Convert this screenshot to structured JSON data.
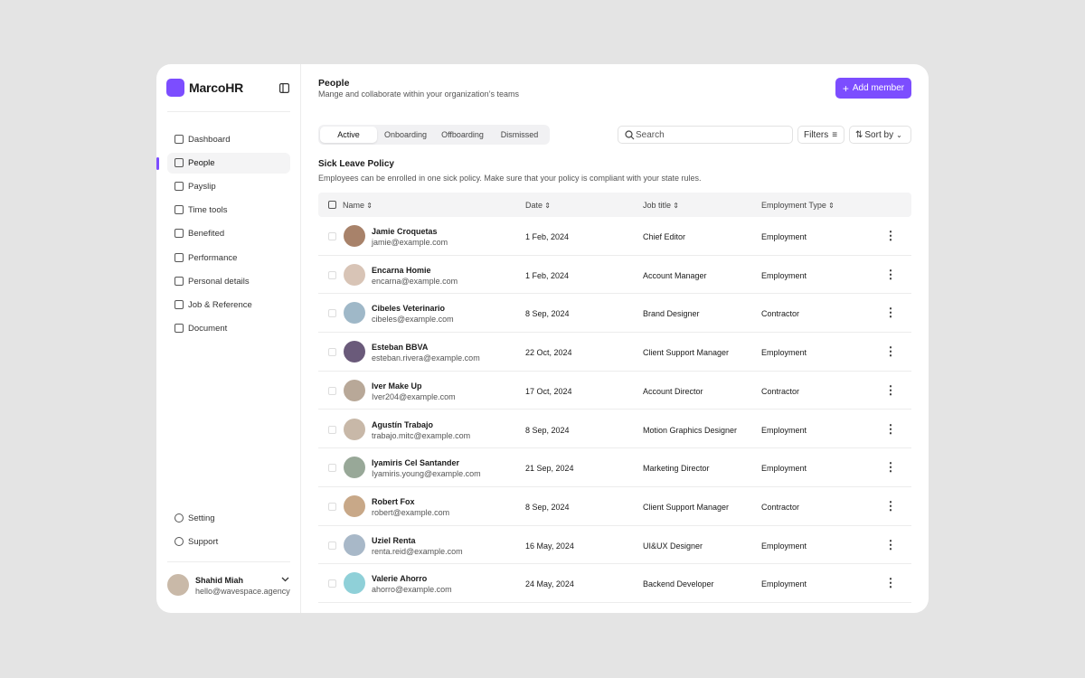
{
  "sidebar": {
    "brand": "MarcoHR",
    "nav": [
      "Dashboard",
      "People",
      "Payslip",
      "Time tools",
      "Benefited",
      "Performance",
      "Personal details",
      "Job & Reference",
      "Document"
    ],
    "footer_nav": [
      "Setting",
      "Support"
    ],
    "user": {
      "name": "Shahid Miah",
      "email": "hello@wavespace.agency"
    }
  },
  "header": {
    "title": "People",
    "subtitle": "Mange and collaborate within your organization’s teams",
    "button": "Add member"
  },
  "tabs": [
    "Active",
    "Onboarding",
    "Offboarding",
    "Dismissed"
  ],
  "search": "Search",
  "filters": "Filters",
  "sort": "Sort by",
  "section": {
    "title": "Sick Leave Policy",
    "description": "Employees can be enrolled in one sick policy. Make sure that your policy is compliant with your state rules."
  },
  "table": {
    "columns": [
      "Name",
      "Date",
      "Job title",
      "Employment Type"
    ],
    "rows": [
      [
        "Jamie Croquetas",
        "jamie@example.com",
        "1 Feb, 2024",
        "Chief Editor",
        "Employment"
      ],
      [
        "Encarna Homie",
        "encarna@example.com",
        "1 Feb, 2024",
        "Account Manager",
        "Employment"
      ],
      [
        "Cibeles Veterinario",
        "cibeles@example.com",
        "8 Sep, 2024",
        "Brand Designer",
        "Contractor"
      ],
      [
        "Esteban BBVA",
        "esteban.rivera@example.com",
        "22 Oct, 2024",
        "Client Support Manager",
        "Employment"
      ],
      [
        "Iver Make Up",
        "Iver204@example.com",
        "17 Oct, 2024",
        "Account Director",
        "Contractor"
      ],
      [
        "Agustín Trabajo",
        "trabajo.mitc@example.com",
        "8 Sep, 2024",
        "Motion Graphics Designer",
        "Employment"
      ],
      [
        "Iyamiris Cel Santander",
        "Iyamiris.young@example.com",
        "21 Sep, 2024",
        "Marketing Director",
        "Employment"
      ],
      [
        "Robert Fox",
        "robert@example.com",
        "8 Sep, 2024",
        "Client Support Manager",
        "Contractor"
      ],
      [
        "Uziel Renta",
        "renta.reid@example.com",
        "16 May, 2024",
        "UI&UX Designer",
        "Employment"
      ],
      [
        "Valerie Ahorro",
        "ahorro@example.com",
        "24 May, 2024",
        "Backend Developer",
        "Employment"
      ]
    ]
  }
}
